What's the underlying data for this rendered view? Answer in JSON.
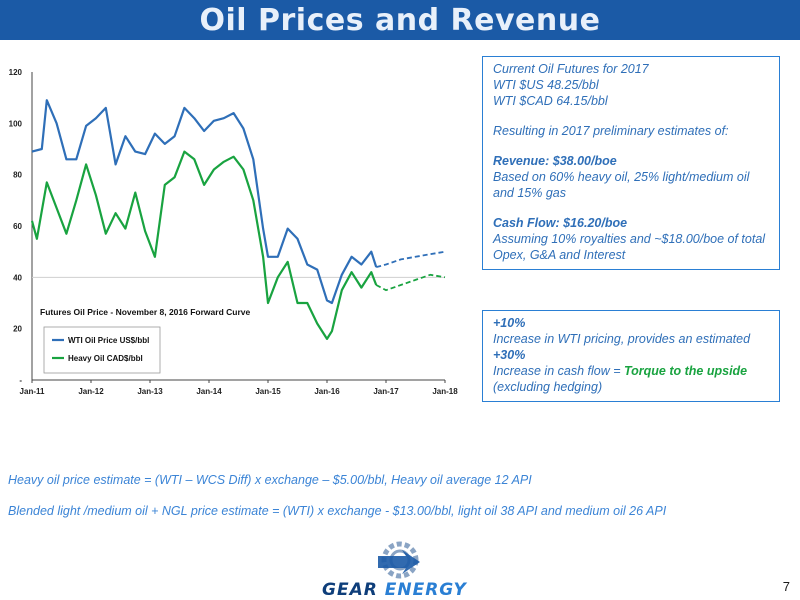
{
  "header": {
    "title": "Oil Prices and Revenue"
  },
  "chart_data": {
    "type": "line",
    "annotation": "Futures Oil Price - November 8, 2016 Forward Curve",
    "ylim": [
      0,
      120
    ],
    "yticks": [
      "-",
      "20",
      "40",
      "60",
      "80",
      "100",
      "120"
    ],
    "xticks": [
      "Jan-11",
      "Jan-12",
      "Jan-13",
      "Jan-14",
      "Jan-15",
      "Jan-16",
      "Jan-17",
      "Jan-18"
    ],
    "grid": false,
    "legend": "bottom-left",
    "reference_line": 40,
    "series": [
      {
        "name": "WTI Oil Price US$/bbl",
        "color": "#2f6fb8",
        "x": [
          "2011-01",
          "2011-03",
          "2011-04",
          "2011-06",
          "2011-08",
          "2011-10",
          "2011-12",
          "2012-02",
          "2012-04",
          "2012-06",
          "2012-08",
          "2012-10",
          "2012-12",
          "2013-02",
          "2013-04",
          "2013-06",
          "2013-08",
          "2013-10",
          "2013-12",
          "2014-02",
          "2014-04",
          "2014-06",
          "2014-08",
          "2014-10",
          "2014-12",
          "2015-01",
          "2015-03",
          "2015-05",
          "2015-07",
          "2015-09",
          "2015-11",
          "2016-01",
          "2016-02",
          "2016-04",
          "2016-06",
          "2016-08",
          "2016-10",
          "2016-11"
        ],
        "values": [
          89,
          90,
          109,
          100,
          86,
          86,
          99,
          102,
          106,
          84,
          95,
          89,
          88,
          96,
          92,
          95,
          106,
          102,
          97,
          101,
          102,
          104,
          98,
          86,
          59,
          48,
          48,
          59,
          55,
          45,
          43,
          31,
          30,
          41,
          48,
          45,
          50,
          44
        ]
      },
      {
        "name": "Heavy Oil CAD$/bbl",
        "color": "#19a340",
        "x": [
          "2011-01",
          "2011-02",
          "2011-04",
          "2011-06",
          "2011-08",
          "2011-10",
          "2011-12",
          "2012-02",
          "2012-04",
          "2012-06",
          "2012-08",
          "2012-10",
          "2012-12",
          "2013-02",
          "2013-04",
          "2013-06",
          "2013-08",
          "2013-10",
          "2013-12",
          "2014-02",
          "2014-04",
          "2014-06",
          "2014-08",
          "2014-10",
          "2014-12",
          "2015-01",
          "2015-03",
          "2015-05",
          "2015-07",
          "2015-09",
          "2015-11",
          "2016-01",
          "2016-02",
          "2016-04",
          "2016-06",
          "2016-08",
          "2016-10",
          "2016-11"
        ],
        "values": [
          62,
          55,
          77,
          67,
          57,
          70,
          84,
          72,
          57,
          65,
          59,
          73,
          58,
          48,
          76,
          79,
          89,
          86,
          76,
          82,
          85,
          87,
          82,
          70,
          48,
          30,
          40,
          46,
          30,
          30,
          22,
          16,
          19,
          35,
          42,
          36,
          42,
          37
        ]
      }
    ],
    "forecast_series": [
      {
        "color": "#2f6fb8",
        "x": [
          "2016-11",
          "2017-01",
          "2017-04",
          "2017-07",
          "2017-10",
          "2018-01"
        ],
        "values": [
          44,
          45,
          47,
          48,
          49,
          50
        ]
      },
      {
        "color": "#19a340",
        "x": [
          "2016-11",
          "2017-01",
          "2017-04",
          "2017-07",
          "2017-10",
          "2018-01"
        ],
        "values": [
          37,
          35,
          37,
          39,
          41,
          40
        ]
      }
    ]
  },
  "estimates": {
    "line1": "Current Oil Futures for 2017",
    "line2": "WTI $US 48.25/bbl",
    "line3": "WTI $CAD 64.15/bbl",
    "line4": "Resulting in 2017 preliminary estimates of:",
    "revenue_label": "Revenue:  $38.00/boe",
    "revenue_detail": "Based on 60% heavy oil, 25% light/medium oil and 15% gas",
    "cashflow_label": "Cash Flow:  $16.20/boe",
    "cashflow_detail": "Assuming 10% royalties and ~$18.00/boe of total Opex, G&A and Interest"
  },
  "sensitivity": {
    "pct1": "+10%",
    "text1": "Increase in WTI pricing, provides an estimated",
    "pct2": "+30%",
    "text2a": "Increase in cash flow = ",
    "torque": "Torque to the upside",
    "text2b": "(excluding hedging)"
  },
  "notes": {
    "heavy": "Heavy oil price estimate = (WTI – WCS Diff) x exchange – $5.00/bbl,  Heavy oil average 12 API",
    "blended": "Blended light /medium oil  + NGL price estimate = (WTI) x exchange - $13.00/bbl,  light oil 38 API and medium oil 26 API"
  },
  "logo": {
    "word1": "GEAR",
    "word2": "ENERGY"
  },
  "page_number": "7"
}
